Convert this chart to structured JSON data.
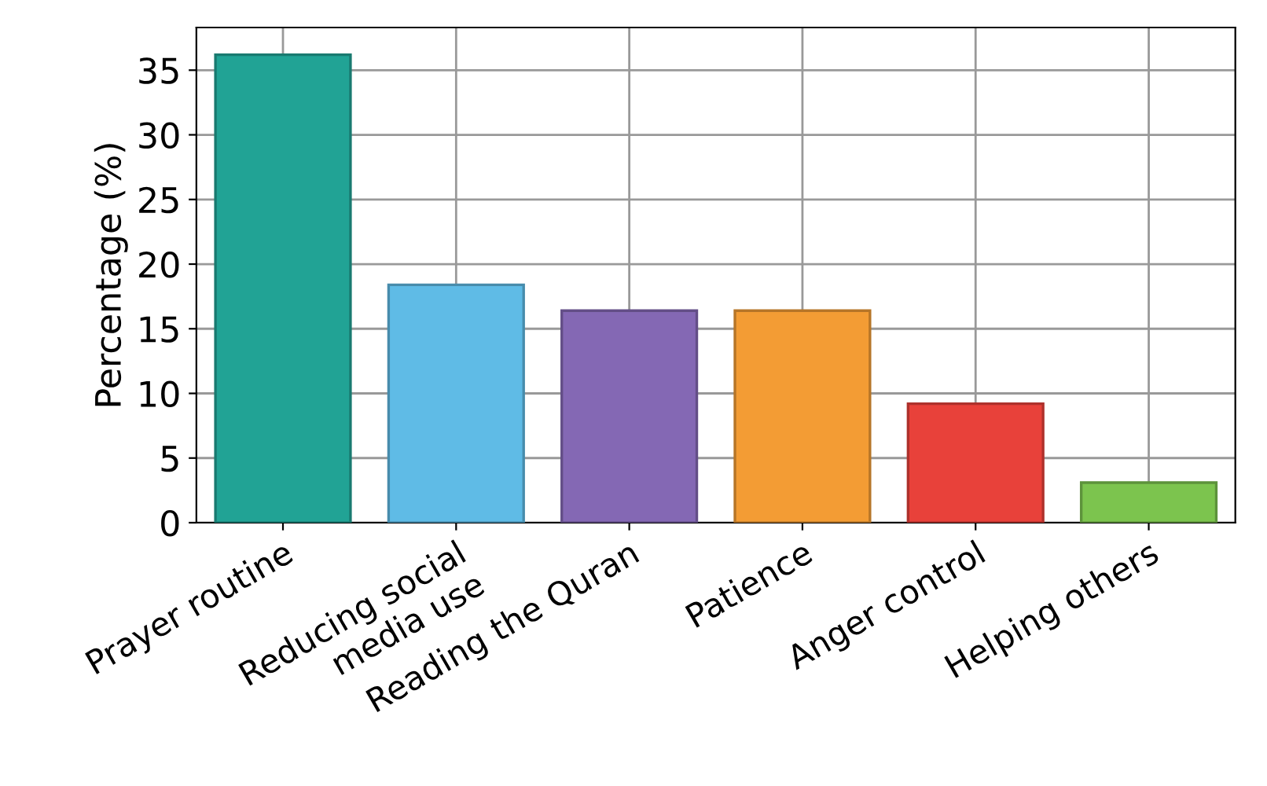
{
  "chart_data": {
    "type": "bar",
    "ylabel": "Percentage (%)",
    "categories": [
      "Prayer routine",
      "Reducing social\nmedia use",
      "Reading the Quran",
      "Patience",
      "Anger control",
      "Helping others"
    ],
    "values": [
      36.2,
      18.4,
      16.4,
      16.4,
      9.2,
      3.1
    ],
    "colors": [
      "#21a395",
      "#5fbbe6",
      "#8468b4",
      "#f39c34",
      "#e8413a",
      "#7cc44e"
    ],
    "ylim": [
      0,
      38.3
    ],
    "yticks": [
      0,
      5,
      10,
      15,
      20,
      25,
      30,
      35
    ],
    "grid": true
  }
}
